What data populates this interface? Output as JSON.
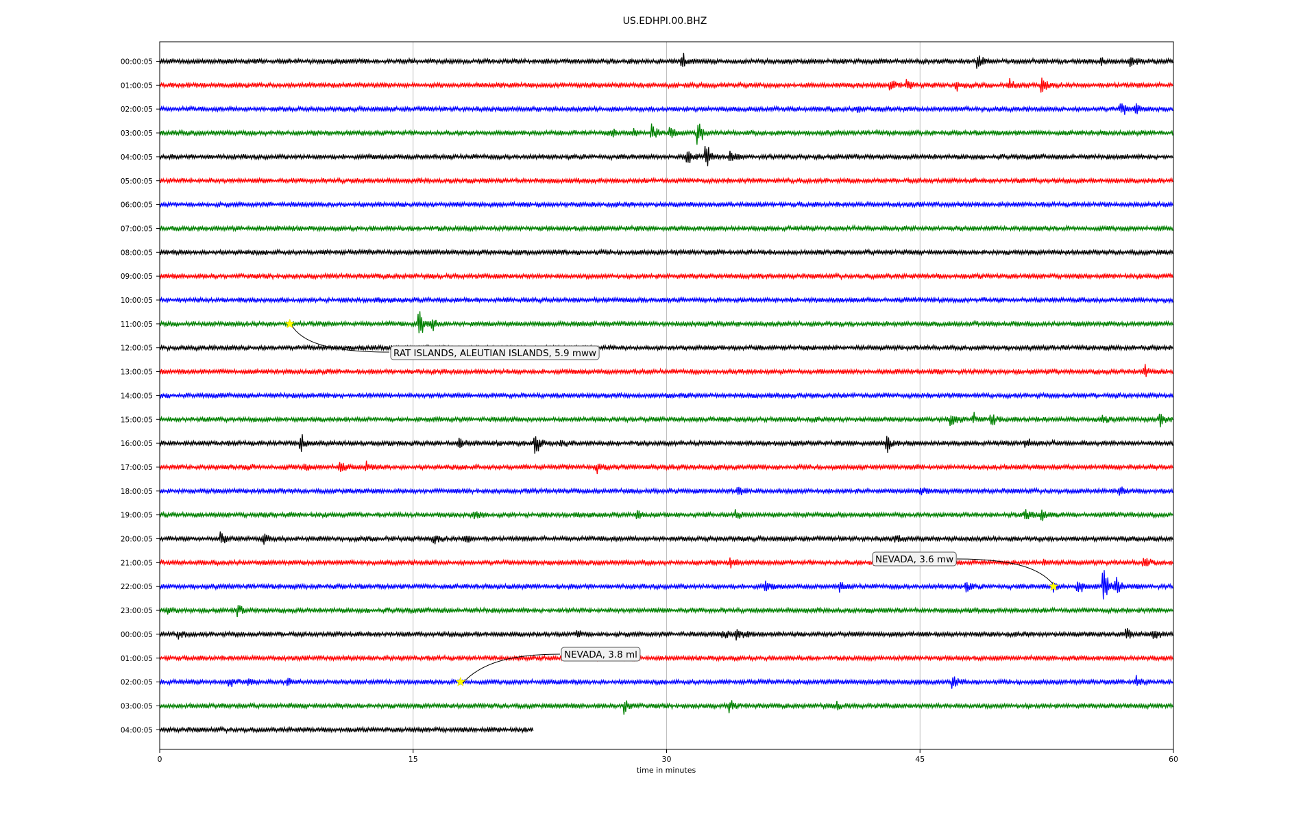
{
  "chart_data": {
    "type": "line",
    "title": "US.EDHPI.00.BHZ",
    "xlabel": "time in minutes",
    "ylabel": "",
    "xlim": [
      0,
      60
    ],
    "x_ticks": [
      0,
      15,
      30,
      45,
      60
    ],
    "x_tick_labels": [
      "0",
      "15",
      "30",
      "45",
      "60"
    ],
    "grid": "vertical",
    "colors": [
      "#000000",
      "#ff0000",
      "#0000ff",
      "#008000"
    ],
    "rows": [
      {
        "label": "00:00:05",
        "end": 60,
        "events": [
          {
            "t": 31,
            "a": 14
          },
          {
            "t": 48.5,
            "a": 10
          },
          {
            "t": 55.8,
            "a": 7
          },
          {
            "t": 57.5,
            "a": 8
          }
        ]
      },
      {
        "label": "01:00:05",
        "end": 60,
        "events": [
          {
            "t": 43.3,
            "a": 10
          },
          {
            "t": 44.3,
            "a": 11
          },
          {
            "t": 47.2,
            "a": 12
          },
          {
            "t": 50.4,
            "a": 10
          },
          {
            "t": 52.3,
            "a": 13
          }
        ]
      },
      {
        "label": "02:00:05",
        "end": 60,
        "events": [
          {
            "t": 41.3,
            "a": 7
          },
          {
            "t": 57,
            "a": 12
          },
          {
            "t": 57.8,
            "a": 9
          }
        ]
      },
      {
        "label": "03:00:05",
        "end": 60,
        "events": [
          {
            "t": 26.8,
            "a": 6
          },
          {
            "t": 28,
            "a": 7
          },
          {
            "t": 29.2,
            "a": 16
          },
          {
            "t": 30.3,
            "a": 10
          },
          {
            "t": 31.9,
            "a": 22
          }
        ]
      },
      {
        "label": "04:00:05",
        "end": 60,
        "events": [
          {
            "t": 31.3,
            "a": 11
          },
          {
            "t": 32.4,
            "a": 21
          },
          {
            "t": 33.8,
            "a": 8
          }
        ]
      },
      {
        "label": "05:00:05",
        "end": 60,
        "events": []
      },
      {
        "label": "06:00:05",
        "end": 60,
        "events": []
      },
      {
        "label": "07:00:05",
        "end": 60,
        "events": []
      },
      {
        "label": "08:00:05",
        "end": 60,
        "events": []
      },
      {
        "label": "09:00:05",
        "end": 60,
        "events": []
      },
      {
        "label": "10:00:05",
        "end": 60,
        "events": []
      },
      {
        "label": "11:00:05",
        "end": 60,
        "events": [
          {
            "t": 15.4,
            "a": 28
          },
          {
            "t": 16.2,
            "a": 9
          }
        ]
      },
      {
        "label": "12:00:05",
        "end": 60,
        "events": []
      },
      {
        "label": "13:00:05",
        "end": 60,
        "events": [
          {
            "t": 58.3,
            "a": 10
          }
        ]
      },
      {
        "label": "14:00:05",
        "end": 60,
        "events": []
      },
      {
        "label": "15:00:05",
        "end": 60,
        "events": [
          {
            "t": 46.9,
            "a": 13
          },
          {
            "t": 48.2,
            "a": 10
          },
          {
            "t": 49.3,
            "a": 9
          },
          {
            "t": 55.8,
            "a": 7
          },
          {
            "t": 59.3,
            "a": 9
          }
        ]
      },
      {
        "label": "16:00:05",
        "end": 60,
        "events": [
          {
            "t": 8.4,
            "a": 18
          },
          {
            "t": 17.8,
            "a": 8
          },
          {
            "t": 22.3,
            "a": 20
          },
          {
            "t": 23.8,
            "a": 7
          },
          {
            "t": 43.1,
            "a": 14
          },
          {
            "t": 51.3,
            "a": 8
          }
        ]
      },
      {
        "label": "17:00:05",
        "end": 60,
        "events": [
          {
            "t": 5.1,
            "a": 7
          },
          {
            "t": 8.6,
            "a": 7
          },
          {
            "t": 10.7,
            "a": 11
          },
          {
            "t": 12.3,
            "a": 7
          },
          {
            "t": 25.9,
            "a": 8
          }
        ]
      },
      {
        "label": "18:00:05",
        "end": 60,
        "events": [
          {
            "t": 34.3,
            "a": 9
          },
          {
            "t": 45.1,
            "a": 9
          },
          {
            "t": 56.9,
            "a": 6
          }
        ]
      },
      {
        "label": "19:00:05",
        "end": 60,
        "events": [
          {
            "t": 18.7,
            "a": 9
          },
          {
            "t": 28.3,
            "a": 6
          },
          {
            "t": 34.2,
            "a": 7
          },
          {
            "t": 51.3,
            "a": 12
          },
          {
            "t": 52.3,
            "a": 11
          }
        ]
      },
      {
        "label": "20:00:05",
        "end": 60,
        "events": [
          {
            "t": 3.7,
            "a": 10
          },
          {
            "t": 6.2,
            "a": 9
          },
          {
            "t": 16.3,
            "a": 8
          },
          {
            "t": 18.1,
            "a": 9
          },
          {
            "t": 43.6,
            "a": 6
          }
        ]
      },
      {
        "label": "21:00:05",
        "end": 60,
        "events": [
          {
            "t": 33.9,
            "a": 10
          },
          {
            "t": 52.4,
            "a": 7
          },
          {
            "t": 58.3,
            "a": 8
          }
        ]
      },
      {
        "label": "22:00:05",
        "end": 60,
        "events": [
          {
            "t": 35.9,
            "a": 8
          },
          {
            "t": 40.3,
            "a": 8
          },
          {
            "t": 47.8,
            "a": 9
          },
          {
            "t": 52.9,
            "a": 9
          },
          {
            "t": 54.4,
            "a": 10
          },
          {
            "t": 55.9,
            "a": 34
          },
          {
            "t": 56.6,
            "a": 18
          }
        ]
      },
      {
        "label": "23:00:05",
        "end": 60,
        "events": [
          {
            "t": 0.5,
            "a": 5
          },
          {
            "t": 4.7,
            "a": 9
          }
        ]
      },
      {
        "label": "00:00:05",
        "end": 60,
        "events": [
          {
            "t": 1.2,
            "a": 7
          },
          {
            "t": 33.4,
            "a": 10
          },
          {
            "t": 34.2,
            "a": 14
          },
          {
            "t": 34.8,
            "a": 8
          },
          {
            "t": 24.8,
            "a": 8
          },
          {
            "t": 57.3,
            "a": 10
          },
          {
            "t": 58.9,
            "a": 8
          }
        ]
      },
      {
        "label": "01:00:05",
        "end": 60,
        "events": []
      },
      {
        "label": "02:00:05",
        "end": 60,
        "events": [
          {
            "t": 4.2,
            "a": 8
          },
          {
            "t": 5.3,
            "a": 8
          },
          {
            "t": 7.6,
            "a": 5
          },
          {
            "t": 47,
            "a": 8
          },
          {
            "t": 57.8,
            "a": 10
          }
        ]
      },
      {
        "label": "03:00:05",
        "end": 60,
        "events": [
          {
            "t": 27.6,
            "a": 14
          },
          {
            "t": 33.8,
            "a": 8
          },
          {
            "t": 40.1,
            "a": 7
          }
        ]
      },
      {
        "label": "04:00:05",
        "end": 22.1,
        "events": []
      }
    ],
    "annotations": [
      {
        "text": "RAT ISLANDS, ALEUTIAN ISLANDS, 5.9 mww",
        "row": 11,
        "t": 7.7
      },
      {
        "text": "NEVADA, 3.6 mw",
        "row": 22,
        "t": 52.9
      },
      {
        "text": "NEVADA, 3.8 ml",
        "row": 26,
        "t": 17.8
      }
    ]
  }
}
